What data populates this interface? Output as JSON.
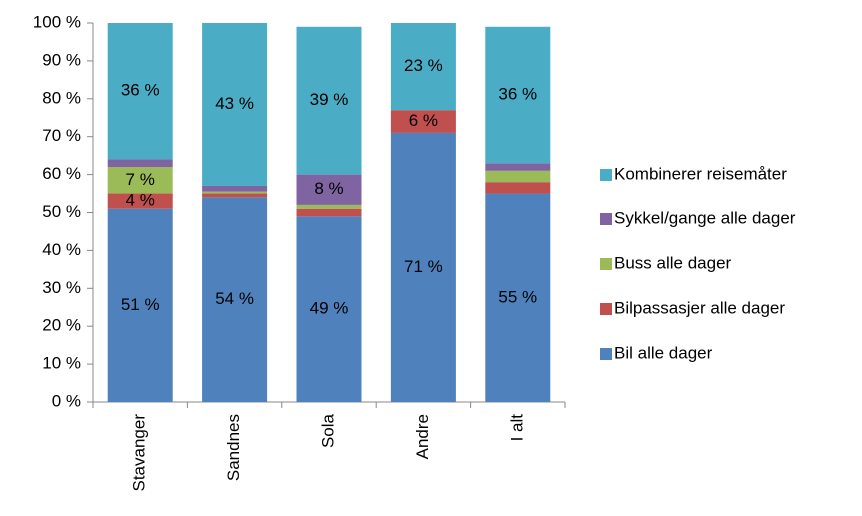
{
  "chart_data": {
    "type": "stacked_bar",
    "categories": [
      "Stavanger",
      "Sandnes",
      "Sola",
      "Andre",
      "I alt"
    ],
    "series": [
      {
        "name": "Bil alle dager",
        "color": "#4f81bd",
        "values": [
          51,
          54,
          49,
          71,
          55
        ],
        "value_labels": [
          "51 %",
          "54 %",
          "49 %",
          "71 %",
          "55 %"
        ]
      },
      {
        "name": "Bilpassasjer alle dager",
        "color": "#c0504d",
        "values": [
          4,
          1,
          2,
          6,
          3
        ],
        "value_labels": [
          "4 %",
          null,
          null,
          "6 %",
          null
        ]
      },
      {
        "name": "Buss alle dager",
        "color": "#9bbb59",
        "values": [
          7,
          0.5,
          1,
          0,
          3
        ],
        "value_labels": [
          "7 %",
          null,
          null,
          null,
          null
        ]
      },
      {
        "name": "Sykkel/gange alle dager",
        "color": "#8064a2",
        "values": [
          2,
          1.5,
          8,
          0,
          2
        ],
        "value_labels": [
          null,
          null,
          "8 %",
          null,
          null
        ]
      },
      {
        "name": "Kombinerer reisemåter",
        "color": "#4bacc6",
        "values": [
          36,
          43,
          39,
          23,
          36
        ],
        "value_labels": [
          "36 %",
          "43 %",
          "39 %",
          "23 %",
          "36 %"
        ]
      }
    ],
    "ylim": [
      0,
      100
    ],
    "yticks": [
      {
        "value": 0,
        "label": "0 %"
      },
      {
        "value": 10,
        "label": "10 %"
      },
      {
        "value": 20,
        "label": "20 %"
      },
      {
        "value": 30,
        "label": "30 %"
      },
      {
        "value": 40,
        "label": "40 %"
      },
      {
        "value": 50,
        "label": "50 %"
      },
      {
        "value": 60,
        "label": "60 %"
      },
      {
        "value": 70,
        "label": "70 %"
      },
      {
        "value": 80,
        "label": "80 %"
      },
      {
        "value": 90,
        "label": "90 %"
      },
      {
        "value": 100,
        "label": "100 %"
      }
    ],
    "legend": "right"
  }
}
